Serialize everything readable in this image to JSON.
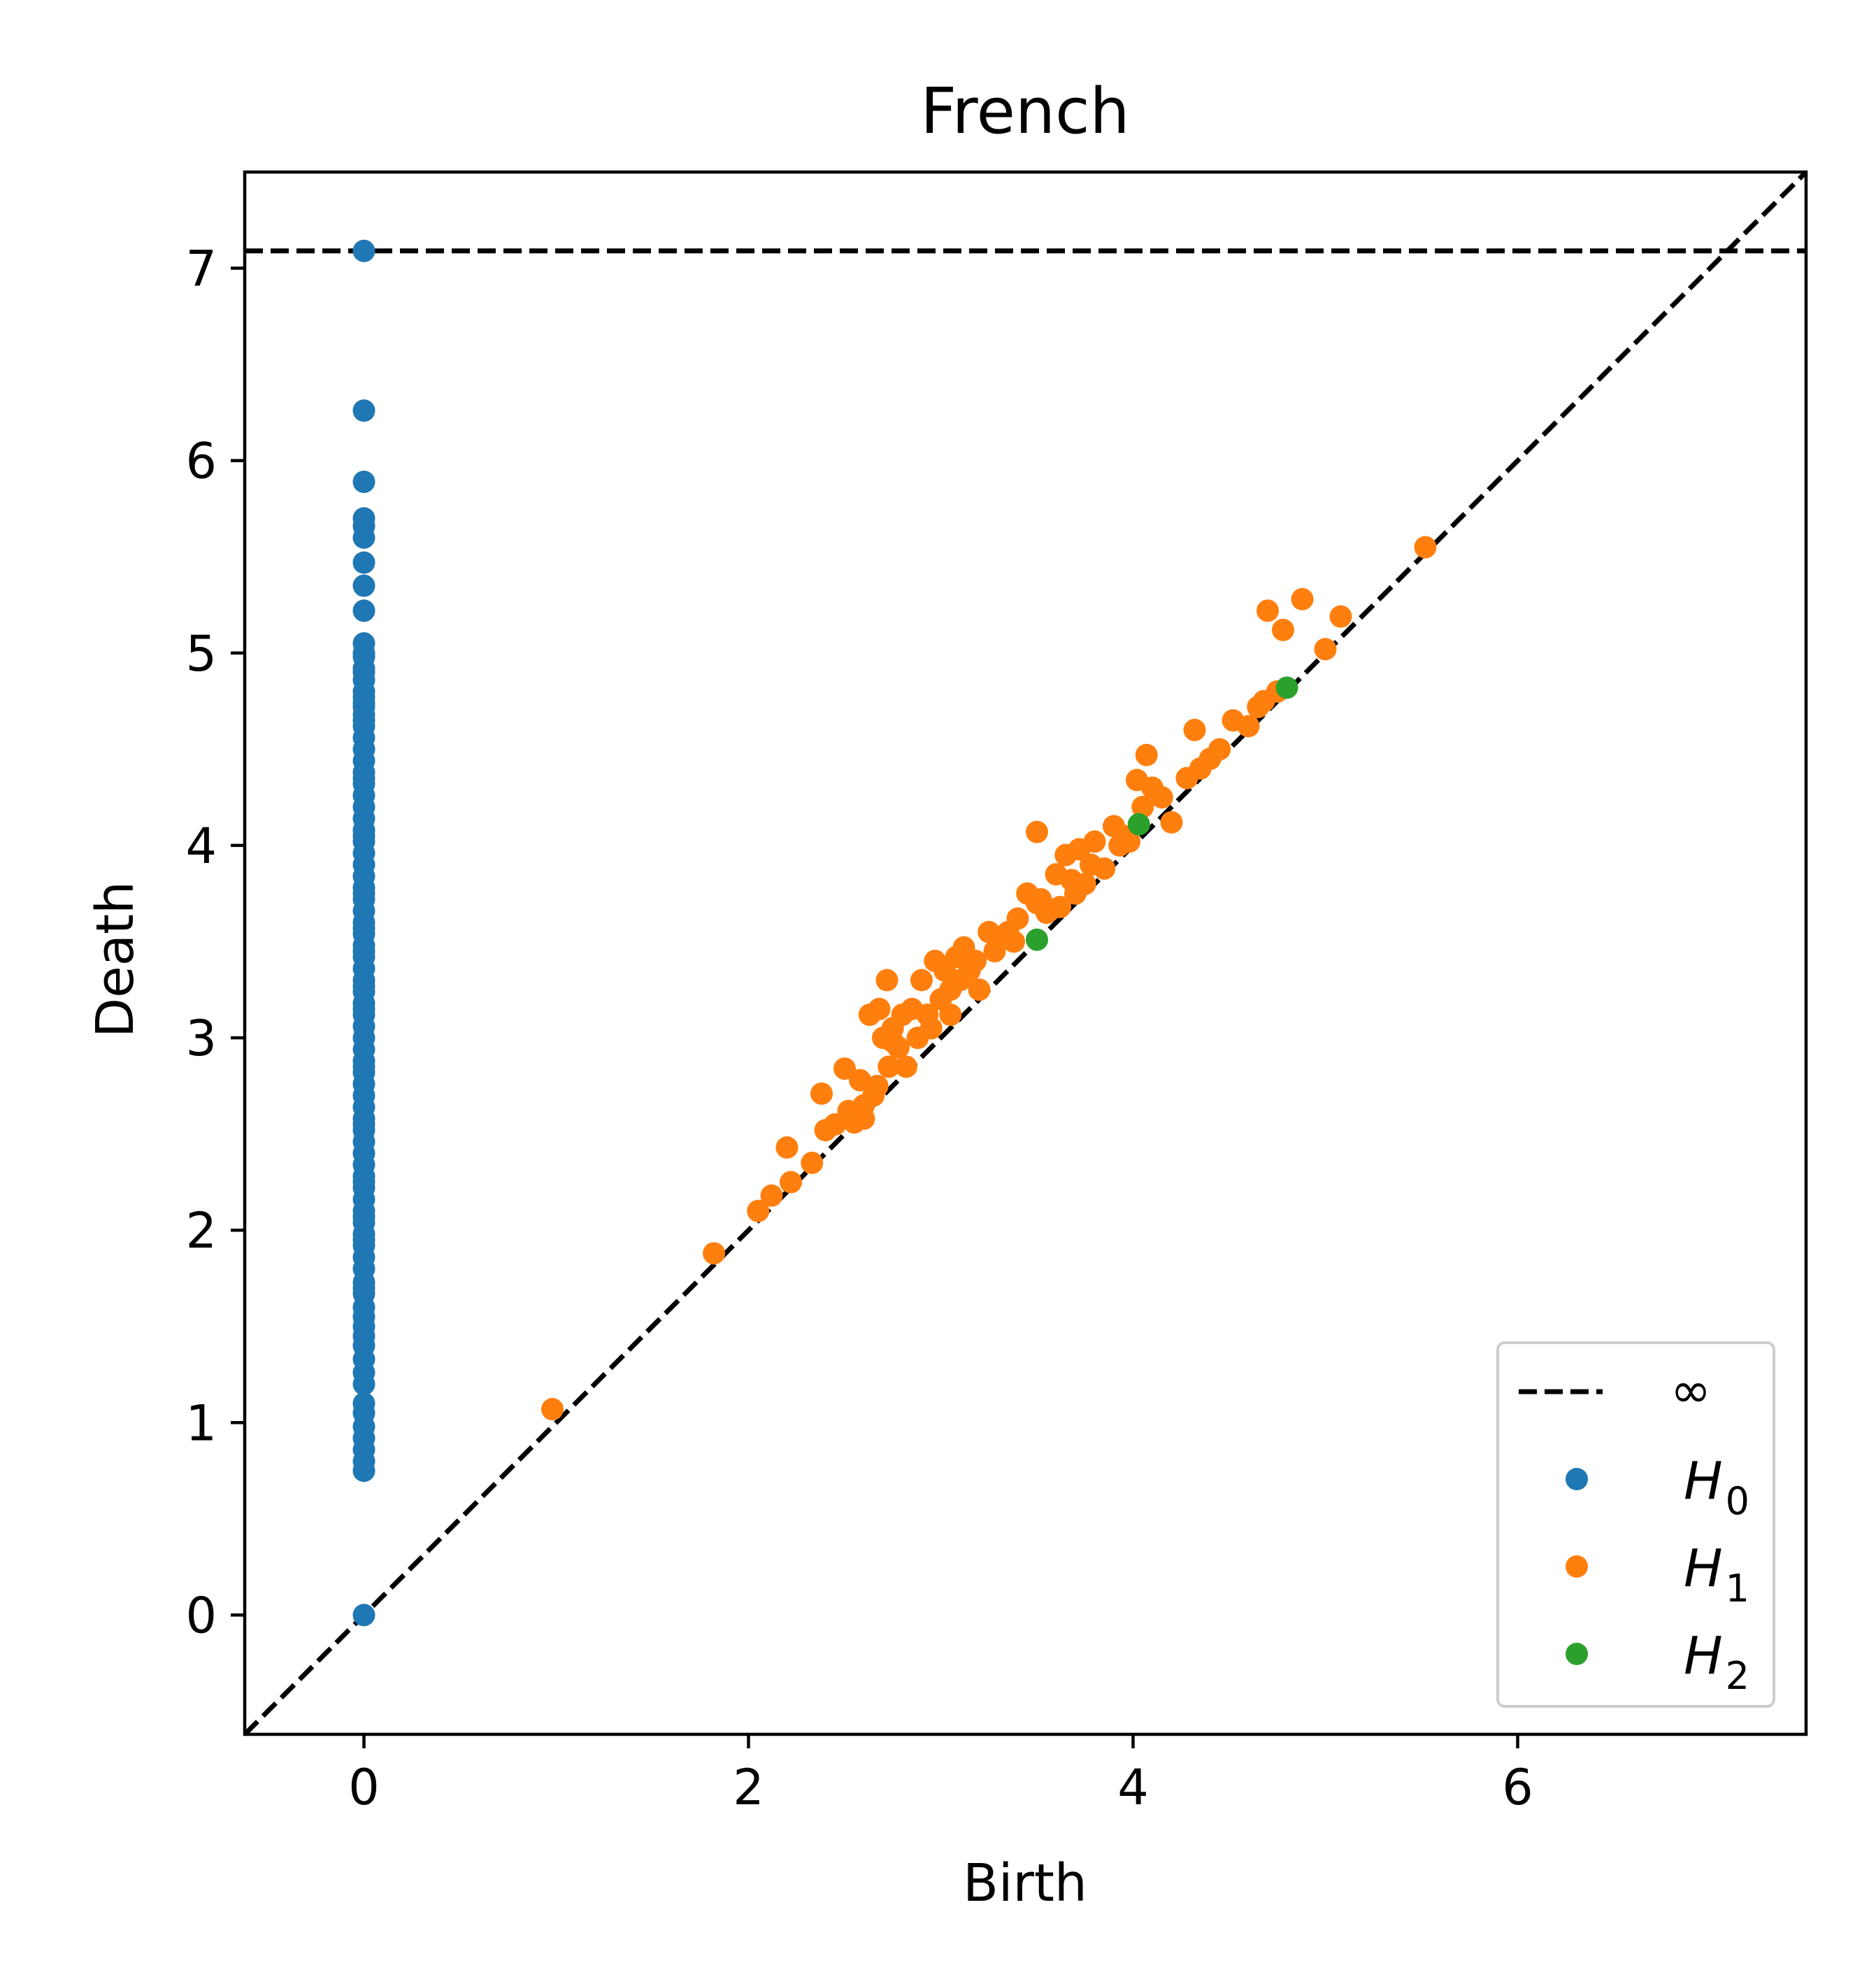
{
  "chart_data": {
    "type": "scatter",
    "title": "French",
    "xlabel": "Birth",
    "ylabel": "Death",
    "xlim": [
      -0.62,
      7.5
    ],
    "ylim": [
      -0.62,
      7.5
    ],
    "xticks": [
      0,
      2,
      4,
      6
    ],
    "yticks": [
      0,
      1,
      2,
      3,
      4,
      5,
      6,
      7
    ],
    "grid": false,
    "legend_position": "lower-right",
    "infinity_value": 7.09,
    "infinity_label": "∞",
    "series": [
      {
        "name": "H",
        "subscript": "0",
        "color": "#1f77b4",
        "x": [
          0,
          0,
          0,
          0,
          0,
          0,
          0,
          0,
          0,
          0,
          0,
          0,
          0,
          0,
          0,
          0,
          0,
          0,
          0,
          0,
          0,
          0,
          0,
          0,
          0,
          0,
          0,
          0,
          0,
          0,
          0,
          0,
          0,
          0,
          0,
          0,
          0,
          0,
          0,
          0,
          0,
          0,
          0,
          0,
          0,
          0,
          0,
          0,
          0,
          0,
          0,
          0,
          0,
          0,
          0,
          0,
          0,
          0,
          0,
          0,
          0,
          0,
          0,
          0,
          0,
          0,
          0,
          0,
          0,
          0,
          0,
          0,
          0,
          0,
          0,
          0,
          0,
          0,
          0,
          0,
          0,
          0,
          0,
          0,
          0,
          0,
          0,
          0,
          0,
          0,
          0,
          0,
          0,
          0,
          0,
          0,
          0,
          0,
          0,
          0
        ],
        "y": [
          0,
          0.75,
          0.8,
          0.86,
          0.92,
          0.98,
          1.05,
          1.2,
          1.26,
          1.33,
          1.4,
          1.55,
          1.6,
          1.67,
          1.73,
          1.8,
          1.86,
          1.92,
          1.98,
          2.04,
          2.1,
          2.16,
          2.22,
          2.28,
          2.34,
          2.4,
          2.46,
          2.52,
          2.58,
          2.64,
          2.7,
          2.76,
          2.82,
          2.88,
          2.94,
          3.0,
          3.06,
          3.12,
          3.18,
          3.24,
          3.3,
          3.36,
          3.42,
          3.48,
          3.54,
          3.6,
          3.66,
          3.72,
          3.78,
          3.84,
          3.9,
          3.96,
          4.02,
          4.08,
          4.14,
          4.2,
          4.26,
          4.32,
          4.38,
          4.44,
          4.5,
          4.56,
          4.62,
          4.68,
          4.74,
          4.8,
          4.86,
          4.92,
          4.98,
          5.05,
          5.22,
          5.35,
          5.47,
          5.6,
          5.66,
          5.7,
          5.89,
          6.26,
          7.09,
          1.1,
          1.45,
          1.5,
          1.7,
          1.95,
          2.25,
          2.55,
          2.85,
          3.15,
          3.45,
          3.75,
          4.05,
          4.35,
          4.65,
          4.72,
          4.77,
          4.9,
          5.0,
          3.27,
          3.57,
          2.07
        ]
      },
      {
        "name": "H",
        "subscript": "1",
        "color": "#ff7f0e",
        "x": [
          0.98,
          1.82,
          2.05,
          2.12,
          2.2,
          2.22,
          2.33,
          2.38,
          2.4,
          2.45,
          2.5,
          2.52,
          2.55,
          2.58,
          2.6,
          2.63,
          2.65,
          2.67,
          2.68,
          2.7,
          2.72,
          2.73,
          2.75,
          2.78,
          2.8,
          2.82,
          2.85,
          2.88,
          2.9,
          2.93,
          2.95,
          2.97,
          3.0,
          3.02,
          3.05,
          3.08,
          3.1,
          3.12,
          3.15,
          3.18,
          3.2,
          3.25,
          3.28,
          3.3,
          3.35,
          3.4,
          3.45,
          3.5,
          3.5,
          3.52,
          3.55,
          3.6,
          3.62,
          3.65,
          3.7,
          3.72,
          3.75,
          3.78,
          3.8,
          3.85,
          3.9,
          3.93,
          3.95,
          4.02,
          4.05,
          4.07,
          4.1,
          4.15,
          4.2,
          4.28,
          4.32,
          4.35,
          4.4,
          4.45,
          4.52,
          4.6,
          4.65,
          4.7,
          4.68,
          4.75,
          4.78,
          4.88,
          5.0,
          5.08,
          5.52,
          2.6,
          2.75,
          3.05,
          3.38,
          3.68,
          3.98
        ],
        "y": [
          1.07,
          1.88,
          2.1,
          2.18,
          2.43,
          2.25,
          2.35,
          2.71,
          2.52,
          2.55,
          2.84,
          2.62,
          2.56,
          2.78,
          2.65,
          3.12,
          2.7,
          2.75,
          3.15,
          3.0,
          3.3,
          2.85,
          3.05,
          2.95,
          3.12,
          2.85,
          3.15,
          3.0,
          3.3,
          3.12,
          3.05,
          3.4,
          3.2,
          3.35,
          3.25,
          3.42,
          3.3,
          3.47,
          3.35,
          3.4,
          3.25,
          3.55,
          3.45,
          3.5,
          3.55,
          3.62,
          3.75,
          4.07,
          3.7,
          3.72,
          3.65,
          3.85,
          3.68,
          3.95,
          3.75,
          3.98,
          3.8,
          3.9,
          4.02,
          3.88,
          4.1,
          4.0,
          4.05,
          4.34,
          4.2,
          4.47,
          4.3,
          4.25,
          4.12,
          4.35,
          4.6,
          4.4,
          4.45,
          4.5,
          4.65,
          4.62,
          4.72,
          5.22,
          4.75,
          4.8,
          5.12,
          5.28,
          5.02,
          5.19,
          5.55,
          2.58,
          2.98,
          3.12,
          3.5,
          3.82,
          4.02
        ]
      },
      {
        "name": "H",
        "subscript": "2",
        "color": "#2ca02c",
        "x": [
          3.5,
          4.03,
          4.8
        ],
        "y": [
          3.51,
          4.11,
          4.82
        ]
      }
    ]
  }
}
